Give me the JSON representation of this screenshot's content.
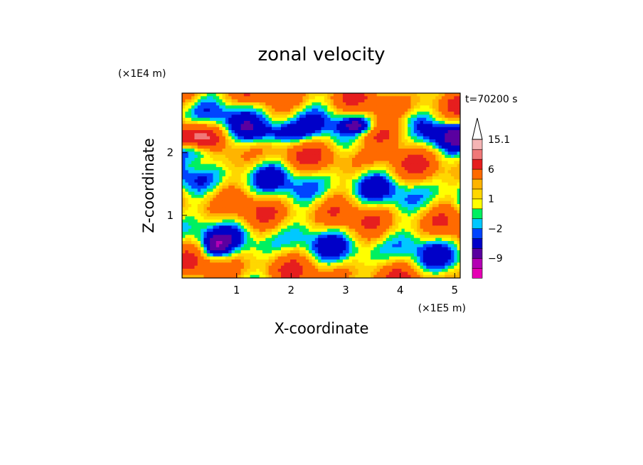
{
  "chart_data": {
    "type": "heatmap",
    "title": "zonal velocity",
    "xlabel": "X-coordinate",
    "ylabel": "Z-coordinate",
    "x_unit": "(×1E5 m)",
    "y_unit": "(×1E4 m)",
    "time_label": "t=70200 s",
    "xlim": [
      0,
      5.1
    ],
    "ylim": [
      0,
      2.95
    ],
    "x_ticks": [
      1,
      2,
      3,
      4,
      5
    ],
    "y_ticks": [
      1,
      2
    ],
    "colorbar": {
      "levels": [
        -15,
        -12,
        -9,
        -6,
        -3,
        -2,
        -1,
        0,
        1,
        2,
        3,
        6,
        9,
        12,
        15.1
      ],
      "tick_values": [
        15.1,
        6,
        1,
        -2,
        -9
      ],
      "tick_labels": [
        "15.1",
        "6",
        "1",
        "−2",
        "−9"
      ],
      "colors": [
        "#e600b4",
        "#b400b4",
        "#5a00a0",
        "#0000c8",
        "#0044ff",
        "#00c8ff",
        "#00f060",
        "#ffff00",
        "#ffd700",
        "#ffb400",
        "#ff6a00",
        "#e61e1e",
        "#f07878",
        "#f5b4b4",
        "#ffffff"
      ],
      "extend": "max"
    }
  }
}
